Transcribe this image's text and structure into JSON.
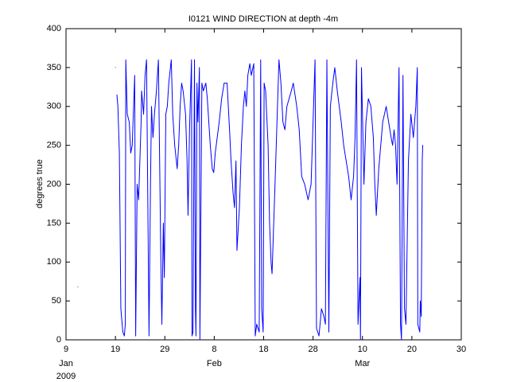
{
  "chart_data": {
    "type": "line",
    "title": "I0121 WIND DIRECTION at depth -4m",
    "ylabel": "degrees true",
    "ylim": [
      0,
      400
    ],
    "yticks": [
      0,
      50,
      100,
      150,
      200,
      250,
      300,
      350,
      400
    ],
    "xlim": [
      9,
      89
    ],
    "xticks": [
      9,
      19,
      29,
      {
        "value": 39,
        "label": "8"
      },
      {
        "value": 49,
        "label": "18"
      },
      {
        "value": 59,
        "label": "28"
      },
      {
        "value": 69,
        "label": "10"
      },
      {
        "value": 79,
        "label": "20"
      },
      {
        "value": 89,
        "label": "30"
      }
    ],
    "x_months": [
      {
        "value": 9,
        "label": "Jan"
      },
      {
        "value": 39,
        "label": "Feb"
      },
      {
        "value": 69,
        "label": "Mar"
      }
    ],
    "x_year": "2009",
    "grid": false,
    "series": [
      {
        "color": "#0000ff",
        "x": [
          11.4,
          15,
          19.0,
          19.1,
          19.3,
          19.5,
          19.8,
          20.1,
          20.5,
          20.8,
          21.0,
          21.1,
          21.4,
          21.8,
          22.1,
          22.4,
          22.9,
          23.1,
          23.4,
          23.7,
          24.0,
          24.2,
          24.3,
          24.7,
          25.0,
          25.3,
          25.8,
          26.1,
          26.3,
          26.6,
          26.9,
          27.3,
          27.7,
          28.2,
          28.4,
          28.7,
          28.9,
          29.2,
          29.5,
          29.8,
          30.3,
          30.6,
          31.0,
          31.5,
          31.8,
          32.1,
          32.4,
          32.7,
          33.2,
          33.5,
          33.7,
          34.0,
          34.4,
          34.5,
          34.7,
          35.0,
          35.2,
          35.3,
          35.5,
          35.7,
          36.0,
          36.1,
          36.5,
          36.8,
          37.3,
          37.6,
          37.9,
          38.2,
          38.6,
          38.9,
          39.2,
          40.0,
          40.5,
          41.0,
          41.6,
          42.1,
          42.4,
          42.8,
          43.1,
          43.4,
          43.6,
          44.1,
          44.5,
          44.9,
          45.2,
          45.5,
          45.8,
          46.2,
          46.5,
          47.0,
          47.3,
          47.6,
          48.1,
          48.4,
          48.6,
          48.9,
          49.1,
          49.4,
          49.9,
          50.2,
          50.5,
          50.7,
          51.3,
          51.8,
          52.1,
          52.5,
          52.9,
          53.3,
          53.7,
          54.6,
          55.0,
          55.7,
          56.2,
          56.7,
          57.3,
          58.0,
          58.6,
          59.4,
          59.7,
          60.2,
          60.7,
          61.2,
          61.5,
          61.8,
          62.2,
          62.5,
          63.0,
          63.4,
          63.9,
          64.3,
          64.7,
          65.2,
          65.7,
          66.2,
          66.7,
          67.2,
          67.5,
          67.8,
          68.1,
          68.5,
          68.6,
          68.8,
          69.3,
          69.7,
          70.2,
          70.7,
          71.2,
          71.5,
          71.8,
          72.3,
          73.1,
          73.8,
          74.3,
          74.8,
          75.1,
          75.4,
          75.7,
          76.0,
          76.4,
          76.7,
          76.9,
          77.2,
          77.5,
          77.8,
          78.3,
          78.8,
          79.3,
          79.8,
          80.1,
          80.2,
          80.6,
          80.7,
          80.9,
          81.1,
          81.2
        ],
        "values": [
          68,
          null,
          350,
          null,
          315,
          300,
          240,
          40,
          10,
          5,
          20,
          360,
          290,
          280,
          240,
          250,
          340,
          5,
          200,
          180,
          240,
          280,
          320,
          290,
          340,
          360,
          5,
          200,
          300,
          260,
          290,
          320,
          360,
          100,
          20,
          150,
          80,
          290,
          300,
          330,
          360,
          290,
          250,
          220,
          250,
          300,
          330,
          320,
          290,
          230,
          160,
          270,
          360,
          5,
          10,
          360,
          40,
          5,
          330,
          280,
          350,
          0,
          330,
          320,
          330,
          310,
          280,
          250,
          220,
          215,
          240,
          280,
          310,
          330,
          330,
          270,
          230,
          190,
          170,
          230,
          115,
          170,
          250,
          300,
          320,
          300,
          340,
          355,
          340,
          355,
          5,
          20,
          10,
          360,
          40,
          10,
          330,
          320,
          250,
          150,
          100,
          85,
          200,
          300,
          360,
          330,
          280,
          270,
          300,
          320,
          330,
          300,
          270,
          210,
          200,
          180,
          200,
          360,
          15,
          5,
          40,
          30,
          20,
          360,
          10,
          300,
          330,
          350,
          320,
          300,
          280,
          250,
          230,
          210,
          180,
          210,
          260,
          360,
          20,
          80,
          0,
          350,
          200,
          280,
          310,
          300,
          260,
          200,
          160,
          220,
          280,
          300,
          280,
          260,
          250,
          270,
          250,
          200,
          350,
          20,
          0,
          340,
          40,
          20,
          230,
          290,
          260,
          300,
          350,
          20,
          10,
          50,
          30,
          230,
          250
        ]
      }
    ]
  }
}
